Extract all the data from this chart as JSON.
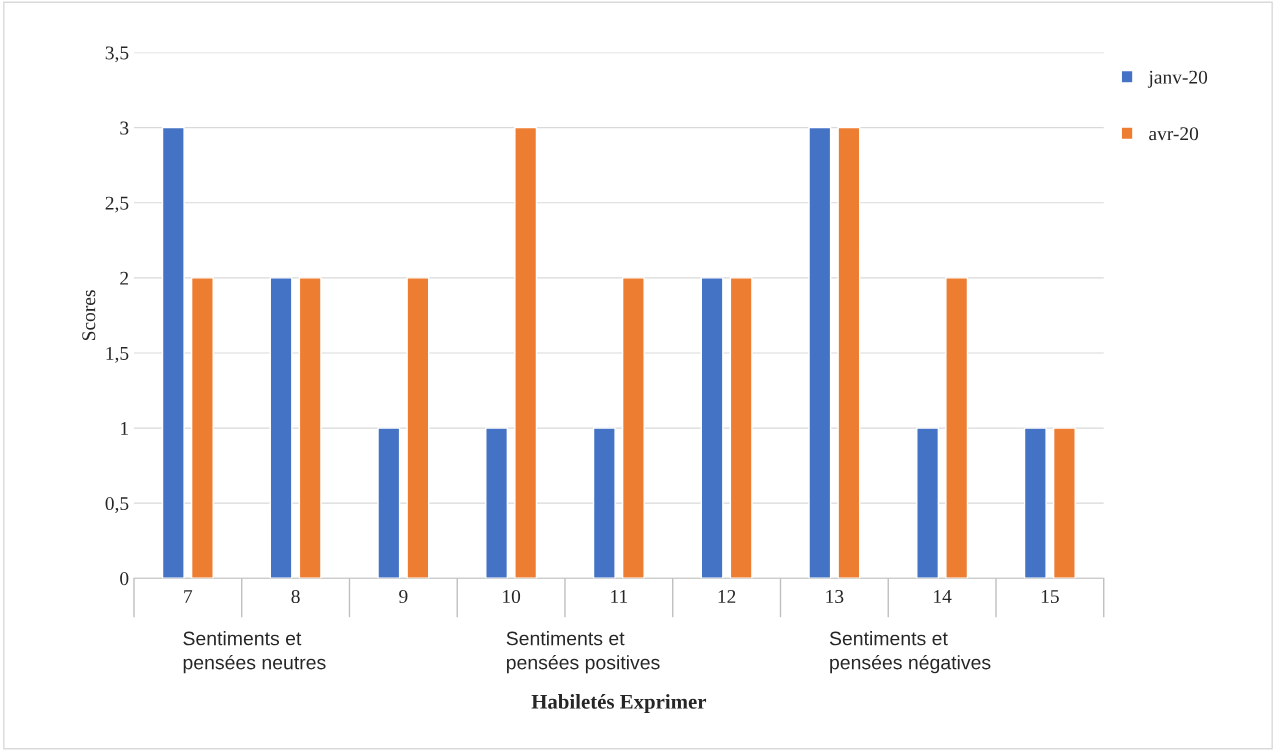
{
  "chart_data": {
    "type": "bar",
    "xlabel": "Habiletés Exprimer",
    "ylabel": "Scores",
    "categories": [
      "7",
      "8",
      "9",
      "10",
      "11",
      "12",
      "13",
      "14",
      "15"
    ],
    "series": [
      {
        "name": "janv-20",
        "color": "#4472c4",
        "values": [
          3,
          2,
          1,
          1,
          1,
          2,
          3,
          1,
          1
        ]
      },
      {
        "name": "avr-20",
        "color": "#ed7d31",
        "values": [
          2,
          2,
          2,
          3,
          2,
          2,
          3,
          2,
          1
        ]
      }
    ],
    "ylim": [
      0,
      3.5
    ],
    "yticks": [
      {
        "value": 0,
        "label": "0"
      },
      {
        "value": 0.5,
        "label": "0,5"
      },
      {
        "value": 1,
        "label": "1"
      },
      {
        "value": 1.5,
        "label": "1,5"
      },
      {
        "value": 2,
        "label": "2"
      },
      {
        "value": 2.5,
        "label": "2,5"
      },
      {
        "value": 3,
        "label": "3"
      },
      {
        "value": 3.5,
        "label": "3,5"
      }
    ],
    "grid": "y",
    "legend": "top right",
    "annotations": [
      "Sentiments et pensées neutres",
      "Sentiments et pensées positives",
      "Sentiments et pensées négatives"
    ]
  }
}
